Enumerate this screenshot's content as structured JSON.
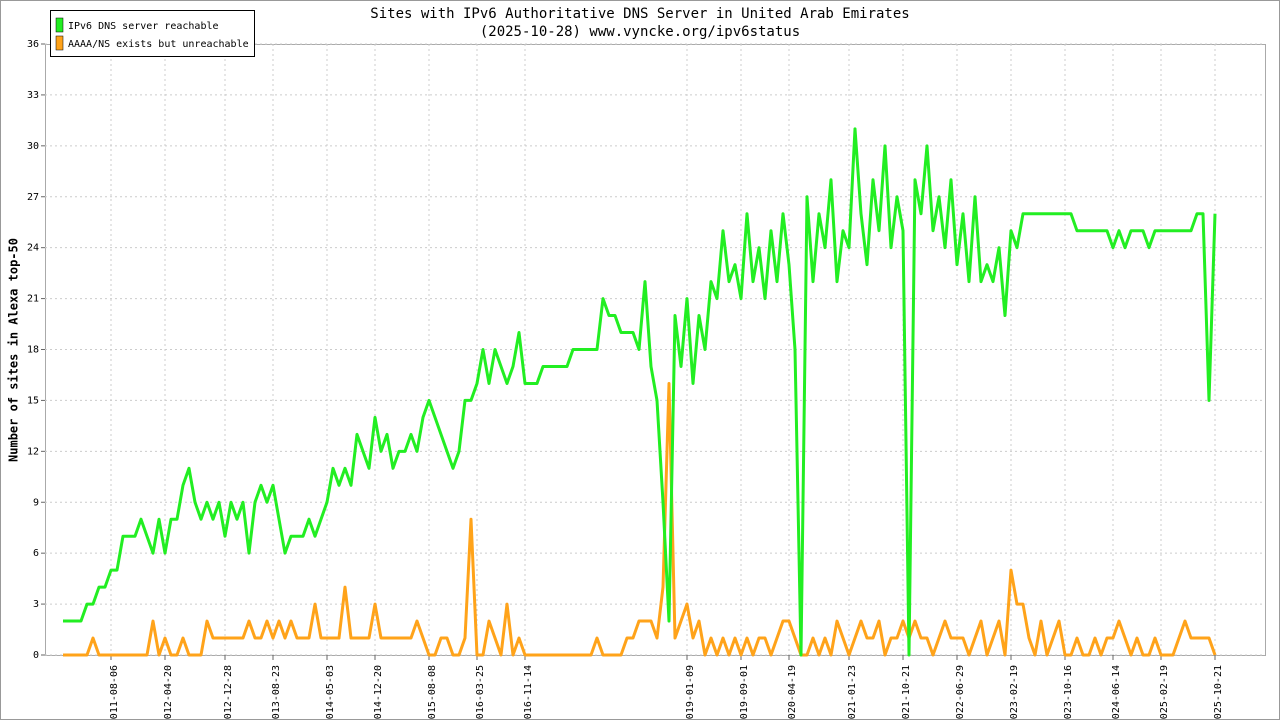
{
  "chart_data": {
    "type": "line",
    "title": "Sites with IPv6 Authoritative DNS Server in United Arab Emirates",
    "subtitle": "(2025-10-28) www.vyncke.org/ipv6status",
    "y_label": "Number of sites in Alexa top-50",
    "legend": "top-left",
    "grid": true,
    "ylim": [
      0,
      36
    ],
    "yticks": [
      0,
      3,
      6,
      9,
      12,
      15,
      18,
      21,
      24,
      27,
      30,
      33,
      36
    ],
    "categories": [
      null,
      null,
      null,
      null,
      null,
      null,
      null,
      null,
      "2011-08-06",
      null,
      null,
      null,
      null,
      null,
      null,
      null,
      null,
      "2012-04-20",
      null,
      null,
      null,
      null,
      null,
      null,
      null,
      null,
      null,
      "2012-12-28",
      null,
      null,
      null,
      null,
      null,
      null,
      null,
      "2013-08-23",
      null,
      null,
      null,
      null,
      null,
      null,
      null,
      null,
      "2014-05-03",
      null,
      null,
      null,
      null,
      null,
      null,
      null,
      "2014-12-20",
      null,
      null,
      null,
      null,
      null,
      null,
      null,
      null,
      "2015-08-08",
      null,
      null,
      null,
      null,
      null,
      null,
      null,
      "2016-03-25",
      null,
      null,
      null,
      null,
      null,
      null,
      null,
      "2016-11-14",
      null,
      null,
      null,
      null,
      null,
      null,
      null,
      null,
      null,
      null,
      null,
      null,
      null,
      null,
      null,
      null,
      null,
      null,
      null,
      null,
      null,
      null,
      null,
      null,
      null,
      null,
      "2019-01-09",
      null,
      null,
      null,
      null,
      null,
      null,
      null,
      null,
      "2019-09-01",
      null,
      null,
      null,
      null,
      null,
      null,
      null,
      "2020-04-19",
      null,
      null,
      null,
      null,
      null,
      null,
      null,
      null,
      null,
      "2021-01-23",
      null,
      null,
      null,
      null,
      null,
      null,
      null,
      null,
      "2021-10-21",
      null,
      null,
      null,
      null,
      null,
      null,
      null,
      null,
      "2022-06-29",
      null,
      null,
      null,
      null,
      null,
      null,
      null,
      null,
      "2023-02-19",
      null,
      null,
      null,
      null,
      null,
      null,
      null,
      null,
      "2023-10-16",
      null,
      null,
      null,
      null,
      null,
      null,
      null,
      "2024-06-14",
      null,
      null,
      null,
      null,
      null,
      null,
      null,
      "2025-02-19",
      null,
      null,
      null,
      null,
      null,
      null,
      null,
      null,
      "2025-10-21"
    ],
    "series": [
      {
        "name": "IPv6 DNS server reachable",
        "color": "#22ee22",
        "values": [
          2,
          2,
          2,
          2,
          3,
          3,
          4,
          4,
          5,
          5,
          7,
          7,
          7,
          8,
          7,
          6,
          8,
          6,
          8,
          8,
          10,
          11,
          9,
          8,
          9,
          8,
          9,
          7,
          9,
          8,
          9,
          6,
          9,
          10,
          9,
          10,
          8,
          6,
          7,
          7,
          7,
          8,
          7,
          8,
          9,
          11,
          10,
          11,
          10,
          13,
          12,
          11,
          14,
          12,
          13,
          11,
          12,
          12,
          13,
          12,
          14,
          15,
          14,
          13,
          12,
          11,
          12,
          15,
          15,
          16,
          18,
          16,
          18,
          17,
          16,
          17,
          19,
          16,
          16,
          16,
          17,
          17,
          17,
          17,
          17,
          18,
          18,
          18,
          18,
          18,
          21,
          20,
          20,
          19,
          19,
          19,
          18,
          22,
          17,
          15,
          9,
          2,
          20,
          17,
          21,
          16,
          20,
          18,
          22,
          21,
          25,
          22,
          23,
          21,
          26,
          22,
          24,
          21,
          25,
          22,
          26,
          23,
          18,
          0,
          27,
          22,
          26,
          24,
          28,
          22,
          25,
          24,
          31,
          26,
          23,
          28,
          25,
          30,
          24,
          27,
          25,
          0,
          28,
          26,
          30,
          25,
          27,
          24,
          28,
          23,
          26,
          22,
          27,
          22,
          23,
          22,
          24,
          20,
          25,
          24,
          26,
          26,
          26,
          26,
          26,
          26,
          26,
          26,
          26,
          25,
          25,
          25,
          25,
          25,
          25,
          24,
          25,
          24,
          25,
          25,
          25,
          24,
          25,
          25,
          25,
          25,
          25,
          25,
          25,
          26,
          26,
          15,
          26
        ]
      },
      {
        "name": "AAAA/NS exists but unreachable",
        "color": "#ffa31a",
        "values": [
          0,
          0,
          0,
          0,
          0,
          1,
          0,
          0,
          0,
          0,
          0,
          0,
          0,
          0,
          0,
          2,
          0,
          1,
          0,
          0,
          1,
          0,
          0,
          0,
          2,
          1,
          1,
          1,
          1,
          1,
          1,
          2,
          1,
          1,
          2,
          1,
          2,
          1,
          2,
          1,
          1,
          1,
          3,
          1,
          1,
          1,
          1,
          4,
          1,
          1,
          1,
          1,
          3,
          1,
          1,
          1,
          1,
          1,
          1,
          2,
          1,
          0,
          0,
          1,
          1,
          0,
          0,
          1,
          8,
          0,
          0,
          2,
          1,
          0,
          3,
          0,
          1,
          0,
          0,
          0,
          0,
          0,
          0,
          0,
          0,
          0,
          0,
          0,
          0,
          1,
          0,
          0,
          0,
          0,
          1,
          1,
          2,
          2,
          2,
          1,
          4,
          16,
          1,
          2,
          3,
          1,
          2,
          0,
          1,
          0,
          1,
          0,
          1,
          0,
          1,
          0,
          1,
          1,
          0,
          1,
          2,
          2,
          1,
          0,
          0,
          1,
          0,
          1,
          0,
          2,
          1,
          0,
          1,
          2,
          1,
          1,
          2,
          0,
          1,
          1,
          2,
          1,
          2,
          1,
          1,
          0,
          1,
          2,
          1,
          1,
          1,
          0,
          1,
          2,
          0,
          1,
          2,
          0,
          5,
          3,
          3,
          1,
          0,
          2,
          0,
          1,
          2,
          0,
          0,
          1,
          0,
          0,
          1,
          0,
          1,
          1,
          2,
          1,
          0,
          1,
          0,
          0,
          1,
          0,
          0,
          0,
          1,
          2,
          1,
          1,
          1,
          1,
          0
        ]
      }
    ]
  }
}
